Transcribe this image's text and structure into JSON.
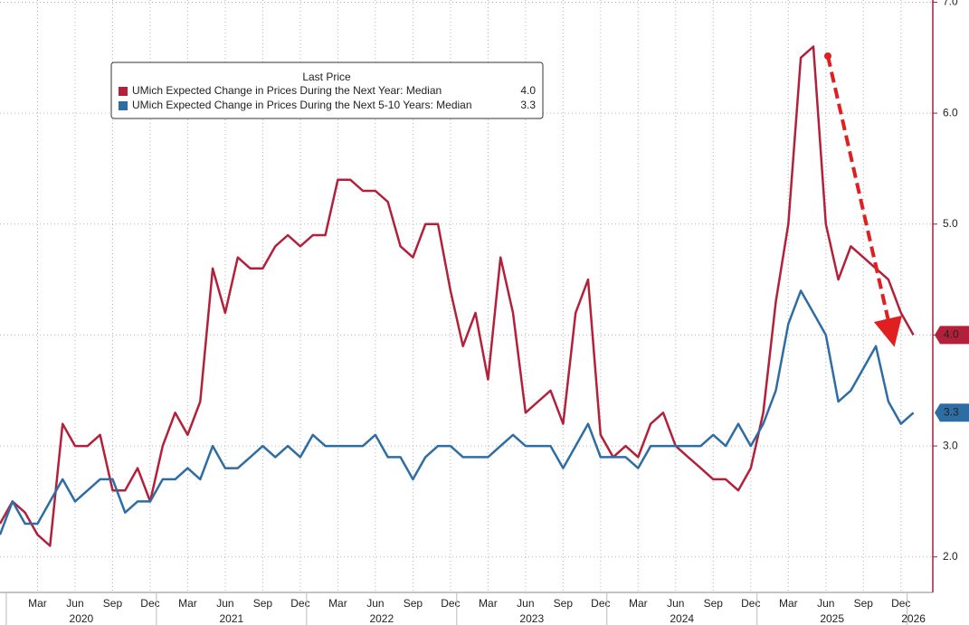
{
  "chart_data": {
    "type": "line",
    "categories": [
      null,
      null,
      null,
      "Mar",
      null,
      null,
      "Jun",
      null,
      null,
      "Sep",
      null,
      null,
      "Dec",
      null,
      null,
      "Mar",
      null,
      null,
      "Jun",
      null,
      null,
      "Sep",
      null,
      null,
      "Dec",
      null,
      null,
      "Mar",
      null,
      null,
      "Jun",
      null,
      null,
      "Sep",
      null,
      null,
      "Dec",
      null,
      null,
      "Mar",
      null,
      null,
      "Jun",
      null,
      null,
      "Sep",
      null,
      null,
      "Dec",
      null,
      null,
      "Mar",
      null,
      null,
      "Jun",
      null,
      null,
      "Sep",
      null,
      null,
      "Dec",
      null,
      null,
      "Mar",
      null,
      null,
      "Jun",
      null,
      null,
      "Sep",
      null,
      null,
      "Dec",
      null
    ],
    "year_labels": [
      "2020",
      "2021",
      "2022",
      "2023",
      "2024",
      "2025",
      "2026"
    ],
    "legend_title": "Last Price",
    "series": [
      {
        "name": "UMich Expected Change in Prices During the Next Year: Median",
        "color": "#b3203a",
        "last_label": "4.0",
        "values": [
          2.3,
          2.5,
          2.4,
          2.2,
          2.1,
          3.2,
          3.0,
          3.0,
          3.1,
          2.6,
          2.6,
          2.8,
          2.5,
          3.0,
          3.3,
          3.1,
          3.4,
          4.6,
          4.2,
          4.7,
          4.6,
          4.6,
          4.8,
          4.9,
          4.8,
          4.9,
          4.9,
          5.4,
          5.4,
          5.3,
          5.3,
          5.2,
          4.8,
          4.7,
          5.0,
          5.0,
          4.4,
          3.9,
          4.2,
          3.6,
          4.7,
          4.2,
          3.3,
          3.4,
          3.5,
          3.2,
          4.2,
          4.5,
          3.1,
          2.9,
          3.0,
          2.9,
          3.2,
          3.3,
          3.0,
          2.9,
          2.8,
          2.7,
          2.7,
          2.6,
          2.8,
          3.3,
          4.3,
          5.0,
          6.5,
          6.6,
          5.0,
          4.5,
          4.8,
          4.7,
          4.6,
          4.5,
          4.2,
          4.0
        ]
      },
      {
        "name": "UMich Expected Change in Prices During the Next 5-10 Years: Median",
        "color": "#2e6da4",
        "last_label": "3.3",
        "values": [
          2.2,
          2.5,
          2.3,
          2.3,
          2.5,
          2.7,
          2.5,
          2.6,
          2.7,
          2.7,
          2.4,
          2.5,
          2.5,
          2.7,
          2.7,
          2.8,
          2.7,
          3.0,
          2.8,
          2.8,
          2.9,
          3.0,
          2.9,
          3.0,
          2.9,
          3.1,
          3.0,
          3.0,
          3.0,
          3.0,
          3.1,
          2.9,
          2.9,
          2.7,
          2.9,
          3.0,
          3.0,
          2.9,
          2.9,
          2.9,
          3.0,
          3.1,
          3.0,
          3.0,
          3.0,
          2.8,
          3.0,
          3.2,
          2.9,
          2.9,
          2.9,
          2.8,
          3.0,
          3.0,
          3.0,
          3.0,
          3.0,
          3.1,
          3.0,
          3.2,
          3.0,
          3.2,
          3.5,
          4.1,
          4.4,
          4.2,
          4.0,
          3.4,
          3.5,
          3.7,
          3.9,
          3.4,
          3.2,
          3.3
        ]
      }
    ],
    "ylim": [
      1.68,
      7.02
    ],
    "yticks": [
      {
        "value": 2,
        "label": "2.0"
      },
      {
        "value": 3,
        "label": "3.0"
      },
      {
        "value": 4,
        "label": "4.0"
      },
      {
        "value": 5,
        "label": "5.0"
      },
      {
        "value": 6,
        "label": "6.0"
      },
      {
        "value": 7,
        "label": "7.0"
      }
    ],
    "grid": true
  }
}
